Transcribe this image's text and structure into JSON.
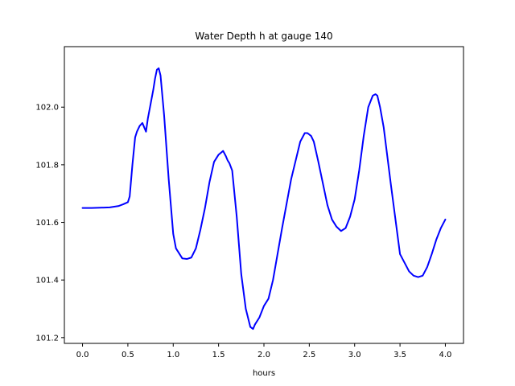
{
  "chart_data": {
    "type": "line",
    "title": "Water Depth h at gauge 140",
    "xlabel": "hours",
    "ylabel": "",
    "xlim": [
      -0.2,
      4.2
    ],
    "ylim": [
      101.18,
      102.21
    ],
    "x_ticks": [
      0.0,
      0.5,
      1.0,
      1.5,
      2.0,
      2.5,
      3.0,
      3.5,
      4.0
    ],
    "x_tick_labels": [
      "0.0",
      "0.5",
      "1.0",
      "1.5",
      "2.0",
      "2.5",
      "3.0",
      "3.5",
      "4.0"
    ],
    "y_ticks": [
      101.2,
      101.4,
      101.6,
      101.8,
      102.0
    ],
    "y_tick_labels": [
      "101.2",
      "101.4",
      "101.6",
      "101.8",
      "102.0"
    ],
    "grid": false,
    "legend": "none",
    "series": [
      {
        "color": "#0000ff",
        "x": [
          0.0,
          0.1,
          0.2,
          0.3,
          0.4,
          0.45,
          0.5,
          0.52,
          0.55,
          0.58,
          0.6,
          0.63,
          0.66,
          0.68,
          0.7,
          0.72,
          0.75,
          0.78,
          0.8,
          0.82,
          0.84,
          0.86,
          0.9,
          0.95,
          1.0,
          1.03,
          1.07,
          1.1,
          1.15,
          1.2,
          1.25,
          1.3,
          1.35,
          1.4,
          1.45,
          1.5,
          1.55,
          1.58,
          1.6,
          1.62,
          1.65,
          1.7,
          1.75,
          1.8,
          1.85,
          1.88,
          1.9,
          1.95,
          2.0,
          2.05,
          2.1,
          2.15,
          2.2,
          2.3,
          2.4,
          2.45,
          2.48,
          2.52,
          2.55,
          2.6,
          2.7,
          2.75,
          2.8,
          2.85,
          2.9,
          2.95,
          3.0,
          3.05,
          3.1,
          3.15,
          3.2,
          3.23,
          3.25,
          3.28,
          3.32,
          3.4,
          3.5,
          3.55,
          3.6,
          3.65,
          3.7,
          3.75,
          3.8,
          3.85,
          3.9,
          3.95,
          4.0
        ],
        "y": [
          101.65,
          101.65,
          101.651,
          101.652,
          101.657,
          101.663,
          101.67,
          101.69,
          101.8,
          101.895,
          101.915,
          101.935,
          101.945,
          101.93,
          101.915,
          101.96,
          102.01,
          102.06,
          102.1,
          102.13,
          102.135,
          102.11,
          101.97,
          101.75,
          101.56,
          101.51,
          101.49,
          101.475,
          101.473,
          101.478,
          101.51,
          101.575,
          101.65,
          101.74,
          101.81,
          101.835,
          101.848,
          101.83,
          101.815,
          101.805,
          101.78,
          101.62,
          101.42,
          101.3,
          101.237,
          101.23,
          101.245,
          101.27,
          101.31,
          101.335,
          101.4,
          101.49,
          101.58,
          101.75,
          101.88,
          101.91,
          101.91,
          101.9,
          101.88,
          101.81,
          101.66,
          101.61,
          101.585,
          101.57,
          101.58,
          101.62,
          101.68,
          101.78,
          101.9,
          102.0,
          102.04,
          102.045,
          102.04,
          102.0,
          101.93,
          101.73,
          101.49,
          101.46,
          101.43,
          101.415,
          101.41,
          101.415,
          101.445,
          101.49,
          101.54,
          101.58,
          101.61
        ]
      }
    ]
  }
}
